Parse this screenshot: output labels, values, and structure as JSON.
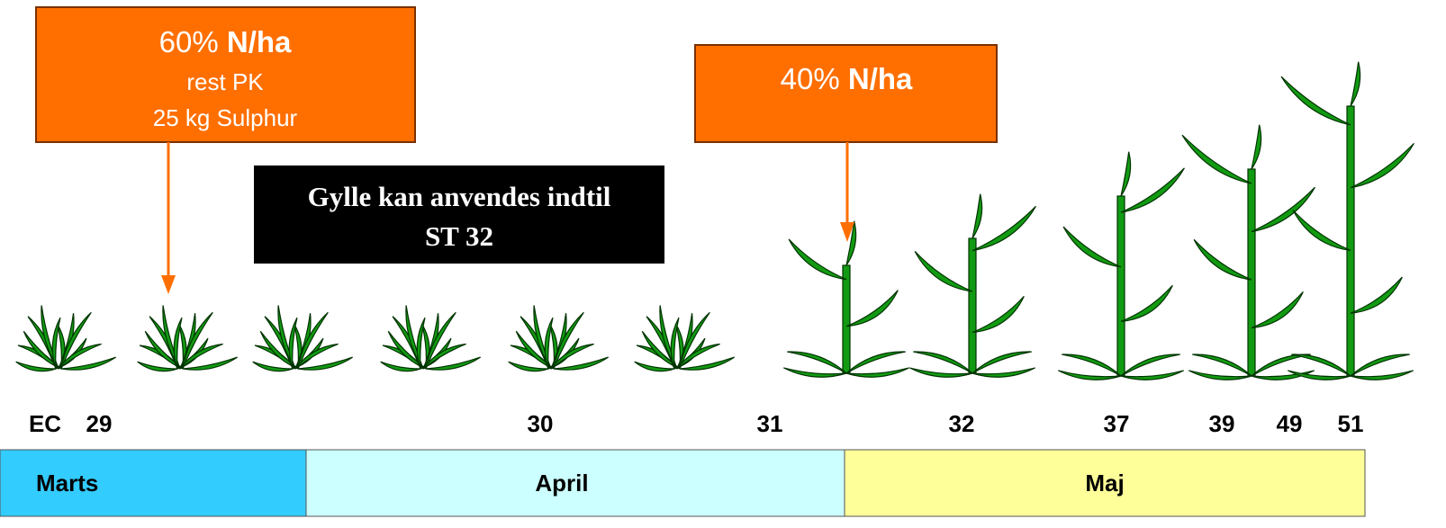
{
  "boxes": [
    {
      "percent": "60%",
      "unit": "N/ha",
      "lines": [
        "rest PK",
        "25 kg Sulphur"
      ]
    },
    {
      "percent": "40%",
      "unit": "N/ha"
    }
  ],
  "note": [
    "Gylle kan anvendes indtil",
    "ST 32"
  ],
  "stages": {
    "prefix": "EC",
    "labels": [
      "29",
      "30",
      "31",
      "32",
      "37",
      "39",
      "49",
      "51"
    ]
  },
  "months": [
    "Marts",
    "April",
    "Maj"
  ]
}
